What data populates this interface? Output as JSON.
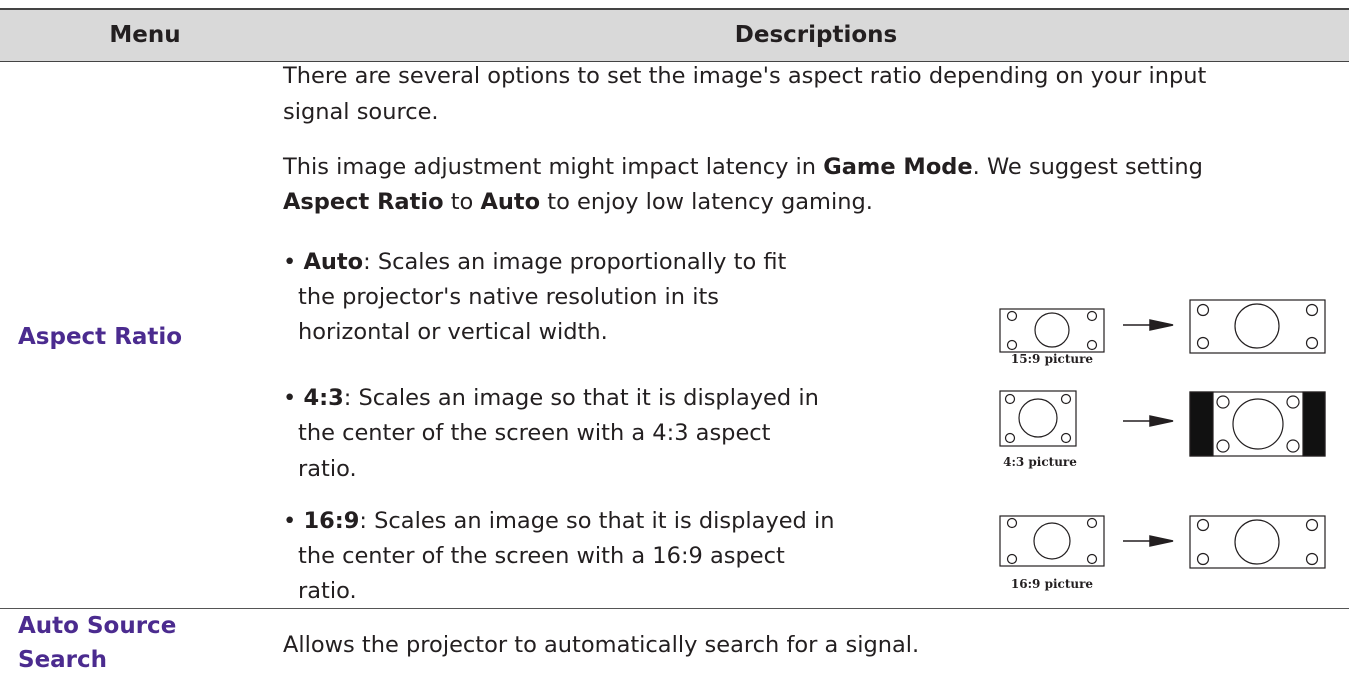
{
  "header": {
    "menu": "Menu",
    "descriptions": "Descriptions"
  },
  "rows": [
    {
      "menu": "Aspect Ratio",
      "paragraphs": [
        [
          [
            "There are several options to set the image's aspect ratio depending on your input"
          ],
          [
            "signal source."
          ]
        ],
        [
          [
            "This image adjustment might impact latency in ",
            "Game Mode",
            ". We suggest setting"
          ],
          [
            "Aspect Ratio",
            " to ",
            "Auto",
            " to enjoy low latency gaming."
          ]
        ]
      ],
      "options": [
        {
          "lines": [
            [
              "• ",
              "Auto",
              ": Scales an image proportionally to fit"
            ],
            [
              "the projector's native resolution in its"
            ],
            [
              "horizontal or vertical width."
            ]
          ],
          "caption": "15:9 picture"
        },
        {
          "lines": [
            [
              "• ",
              "4:3",
              ": Scales an image so that it is displayed in"
            ],
            [
              "the center of the screen with a 4:3 aspect"
            ],
            [
              "ratio."
            ]
          ],
          "caption": "4:3 picture"
        },
        {
          "lines": [
            [
              "• ",
              "16:9",
              ": Scales an image so that it is displayed in"
            ],
            [
              "the center of the screen with a 16:9 aspect"
            ],
            [
              "ratio."
            ]
          ],
          "caption": "16:9 picture"
        }
      ]
    },
    {
      "menu": [
        "Auto Source",
        "Search"
      ],
      "description": "Allows the projector to automatically search for a signal."
    }
  ]
}
